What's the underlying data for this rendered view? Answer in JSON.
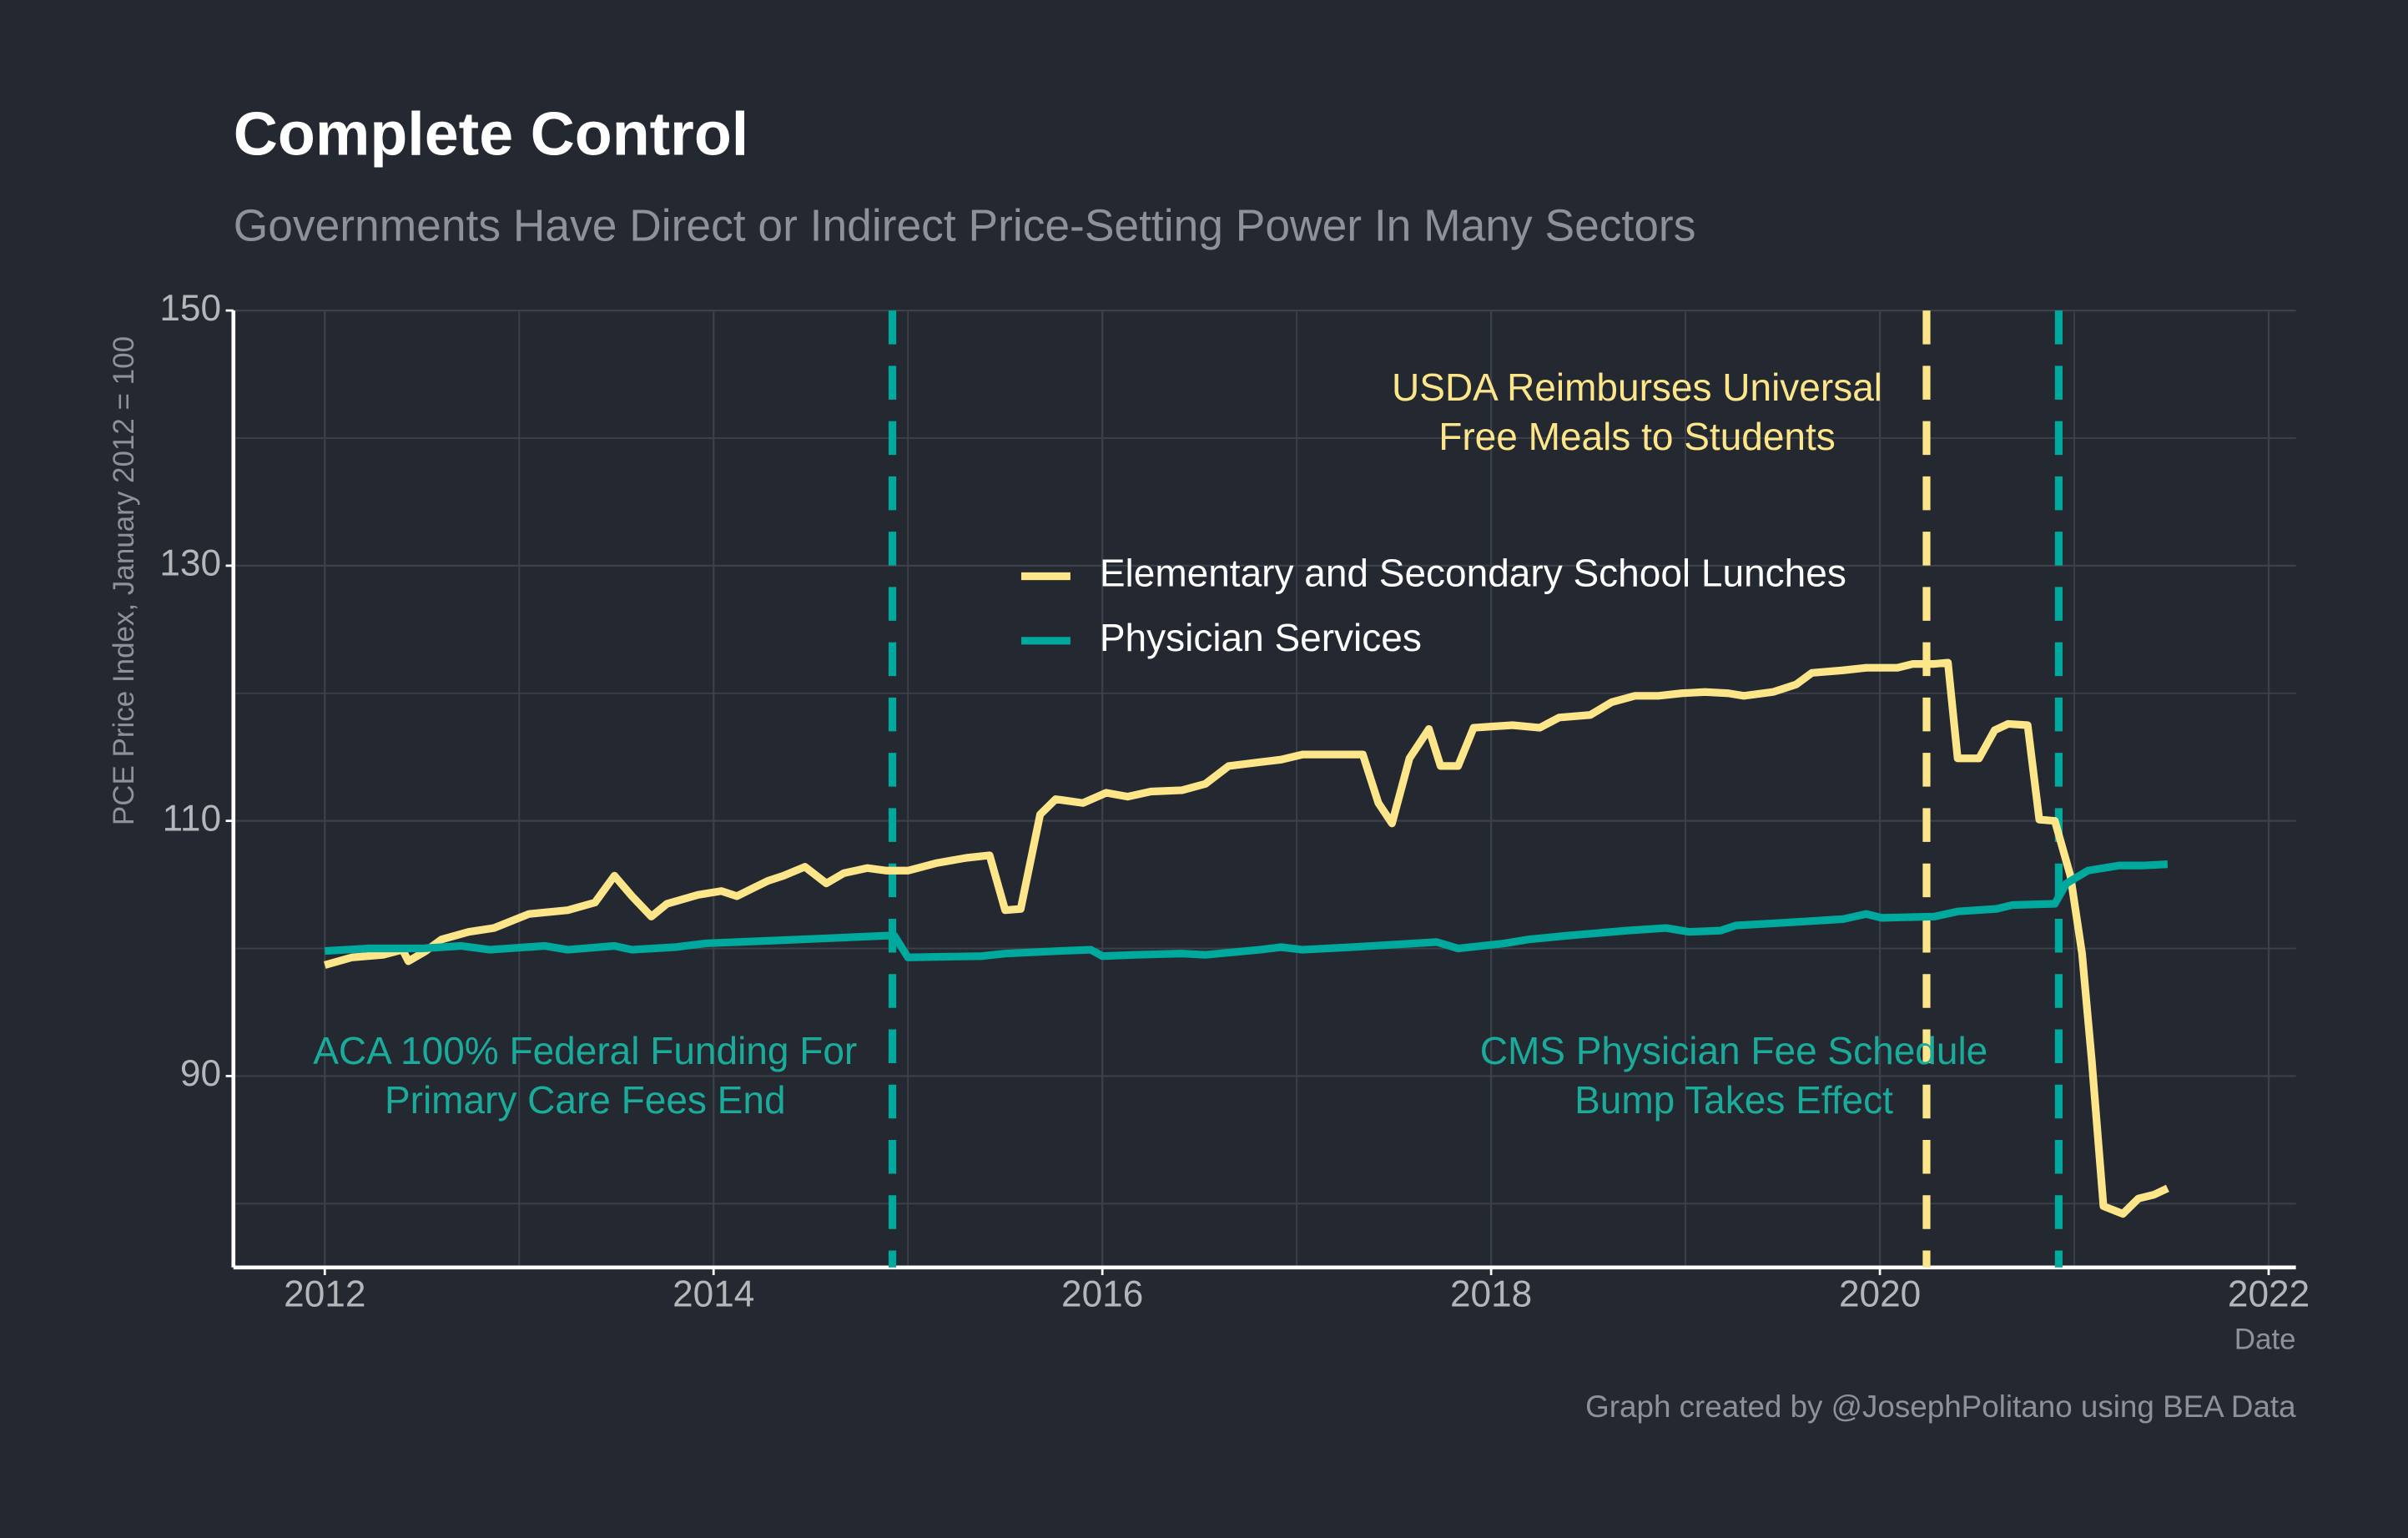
{
  "chart_data": {
    "type": "line",
    "title": "Complete Control",
    "subtitle": "Governments Have Direct or Indirect Price-Setting Power In Many Sectors",
    "y_label": "PCE Price Index, January 2012 = 100",
    "x_label": "Date",
    "caption": "Graph created by @JosephPolitano using BEA Data",
    "xlim": [
      2011.53,
      2022.14
    ],
    "xticks": [
      2012,
      2014,
      2016,
      2018,
      2020,
      2022
    ],
    "x_minor_grid": [
      2013,
      2015,
      2017,
      2019,
      2021
    ],
    "ylim": [
      75,
      150
    ],
    "yticks": [
      90,
      110,
      130,
      150
    ],
    "y_minor_grid": [
      80,
      100,
      120,
      140
    ],
    "grid": true,
    "series": [
      {
        "name": "Elementary and Secondary School Lunches",
        "color": "#fde68a",
        "x": [
          2012.0,
          2012.14,
          2012.3,
          2012.4,
          2012.43,
          2012.52,
          2012.6,
          2012.74,
          2012.87,
          2013.05,
          2013.25,
          2013.39,
          2013.49,
          2013.58,
          2013.68,
          2013.76,
          2013.92,
          2014.04,
          2014.12,
          2014.2,
          2014.28,
          2014.36,
          2014.47,
          2014.58,
          2014.67,
          2014.79,
          2014.89,
          2015.0,
          2015.15,
          2015.3,
          2015.42,
          2015.5,
          2015.58,
          2015.68,
          2015.76,
          2015.9,
          2016.02,
          2016.13,
          2016.25,
          2016.41,
          2016.53,
          2016.65,
          2016.81,
          2016.92,
          2017.03,
          2017.2,
          2017.34,
          2017.42,
          2017.49,
          2017.58,
          2017.68,
          2017.74,
          2017.83,
          2017.91,
          2018.11,
          2018.25,
          2018.35,
          2018.51,
          2018.62,
          2018.74,
          2018.86,
          2018.98,
          2019.1,
          2019.22,
          2019.3,
          2019.45,
          2019.57,
          2019.65,
          2019.81,
          2019.93,
          2020.09,
          2020.17,
          2020.28,
          2020.35,
          2020.4,
          2020.51,
          2020.59,
          2020.66,
          2020.76,
          2020.82,
          2020.9,
          2020.98,
          2021.04,
          2021.09,
          2021.15,
          2021.25,
          2021.33,
          2021.41,
          2021.48
        ],
        "values": [
          98.7,
          99.3,
          99.5,
          99.9,
          99.0,
          99.8,
          100.7,
          101.3,
          101.6,
          102.7,
          103.0,
          103.6,
          105.7,
          104.1,
          102.5,
          103.5,
          104.2,
          104.5,
          104.1,
          104.7,
          105.3,
          105.7,
          106.4,
          105.1,
          105.9,
          106.3,
          106.1,
          106.1,
          106.7,
          107.1,
          107.3,
          103.0,
          103.1,
          110.5,
          111.7,
          111.4,
          112.2,
          111.9,
          112.3,
          112.4,
          112.9,
          114.3,
          114.6,
          114.8,
          115.2,
          115.2,
          115.2,
          111.4,
          109.8,
          114.9,
          117.2,
          114.3,
          114.3,
          117.3,
          117.5,
          117.3,
          118.1,
          118.3,
          119.3,
          119.8,
          119.8,
          120.0,
          120.1,
          120.0,
          119.8,
          120.1,
          120.7,
          121.6,
          121.8,
          122.0,
          122.0,
          122.3,
          122.3,
          122.4,
          114.9,
          114.9,
          117.1,
          117.6,
          117.5,
          110.1,
          110.0,
          105.7,
          99.6,
          91.2,
          79.8,
          79.2,
          80.4,
          80.7,
          81.2
        ]
      },
      {
        "name": "Physician Services",
        "color": "#00a99d",
        "x": [
          2012.0,
          2012.22,
          2012.5,
          2012.7,
          2012.85,
          2013.13,
          2013.25,
          2013.49,
          2013.58,
          2013.8,
          2013.96,
          2014.28,
          2014.59,
          2014.89,
          2014.93,
          2015.0,
          2015.38,
          2015.5,
          2015.78,
          2015.94,
          2016.0,
          2016.17,
          2016.41,
          2016.53,
          2016.81,
          2016.92,
          2017.03,
          2017.28,
          2017.72,
          2017.83,
          2018.07,
          2018.19,
          2018.39,
          2018.7,
          2018.9,
          2019.02,
          2019.18,
          2019.26,
          2019.49,
          2019.81,
          2019.93,
          2020.01,
          2020.28,
          2020.4,
          2020.6,
          2020.68,
          2020.9,
          2020.96,
          2021.07,
          2021.23,
          2021.35,
          2021.48
        ],
        "values": [
          99.8,
          100.0,
          100.0,
          100.2,
          99.9,
          100.2,
          99.9,
          100.2,
          99.9,
          100.1,
          100.4,
          100.6,
          100.8,
          101.0,
          101.0,
          99.3,
          99.4,
          99.6,
          99.8,
          99.9,
          99.4,
          99.5,
          99.6,
          99.5,
          99.9,
          100.1,
          99.9,
          100.1,
          100.5,
          100.0,
          100.4,
          100.7,
          101.0,
          101.4,
          101.6,
          101.3,
          101.4,
          101.8,
          102.0,
          102.3,
          102.7,
          102.4,
          102.5,
          102.9,
          103.1,
          103.4,
          103.5,
          105.1,
          106.1,
          106.5,
          106.5,
          106.6
        ]
      }
    ],
    "vlines": [
      {
        "x": 2014.92,
        "color": "#00a99d"
      },
      {
        "x": 2020.24,
        "color": "#fde68a"
      },
      {
        "x": 2020.92,
        "color": "#00a99d"
      }
    ],
    "annotations": [
      {
        "lines": [
          "ACA 100% Federal Funding For",
          "Primary Care Fees End"
        ],
        "color": "#1aab9b"
      },
      {
        "lines": [
          "USDA Reimburses Universal",
          "Free Meals to Students"
        ],
        "color": "#fde68a"
      },
      {
        "lines": [
          "CMS Physician Fee Schedule",
          "Bump Takes Effect"
        ],
        "color": "#1aab9b"
      }
    ]
  }
}
